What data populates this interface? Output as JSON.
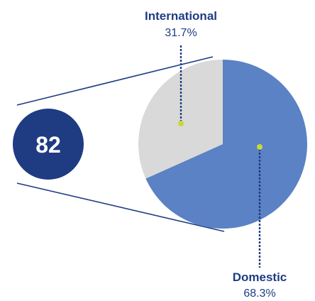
{
  "chart_data": {
    "type": "pie",
    "total": "82",
    "slices": [
      {
        "label": "Domestic",
        "value_label": "68.3%",
        "value": 68.3,
        "color": "#5a82c4"
      },
      {
        "label": "International",
        "value_label": "31.7%",
        "value": 31.7,
        "color": "#d9d9d9"
      }
    ],
    "colors": {
      "badge": "#1f3c82",
      "text": "#1f3c82",
      "leader": "#1f3c82",
      "connector": "#1f3c82",
      "dot": "#c9d73a"
    }
  }
}
